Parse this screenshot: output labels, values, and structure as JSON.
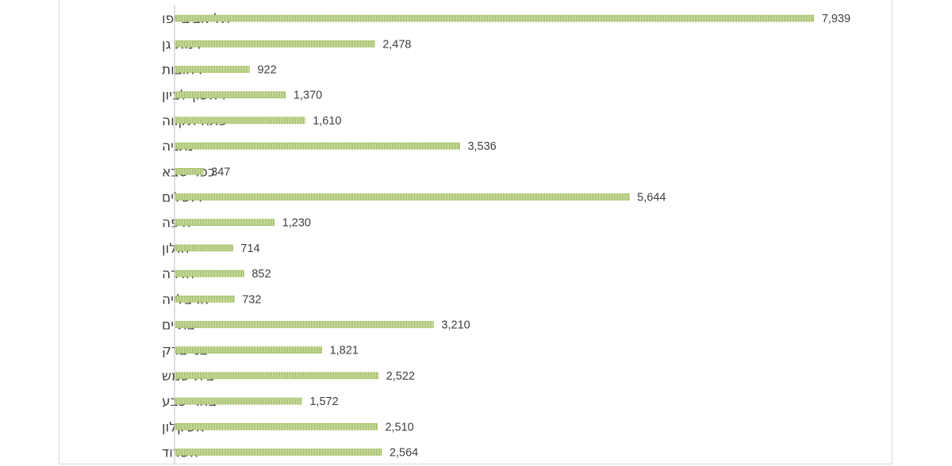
{
  "chart_data": {
    "type": "bar",
    "orientation": "horizontal",
    "title": "",
    "xlabel": "",
    "ylabel": "",
    "categories": [
      "תל אביב-יפו",
      "רמת גן",
      "רחובות",
      "ראשון לציון",
      "פתח תקווה",
      "נתניה",
      "כפר סבא",
      "ירושלים",
      "חיפה",
      "חולון",
      "חדרה",
      "הרצלייה",
      "בת ים",
      "בני ברק",
      "בית שמש",
      "באר שבע",
      "אשקלון",
      "אשדוד"
    ],
    "values": [
      7939,
      2478,
      922,
      1370,
      1610,
      3536,
      347,
      5644,
      1230,
      714,
      852,
      732,
      3210,
      1821,
      2522,
      1572,
      2510,
      2564
    ],
    "value_labels": [
      "7,939",
      "2,478",
      "922",
      "1,370",
      "1,610",
      "3,536",
      "347",
      "5,644",
      "1,230",
      "714",
      "852",
      "732",
      "3,210",
      "1,821",
      "2,522",
      "1,572",
      "2,510",
      "2,564"
    ],
    "xlim": [
      0,
      8000
    ],
    "grid": false,
    "legend": "none",
    "bar_color": "#9bbb59",
    "bar_pattern": "vertical-stripes"
  }
}
